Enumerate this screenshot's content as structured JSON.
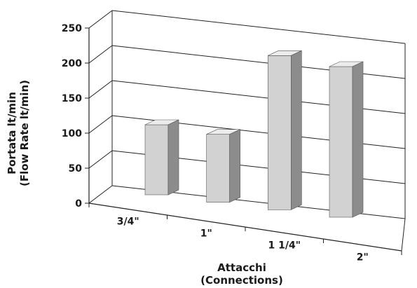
{
  "chart_data": {
    "type": "bar",
    "title": "",
    "categories": [
      "3/4\"",
      "1\"",
      "1 1/4\"",
      "2\""
    ],
    "values": [
      100,
      97,
      220,
      215
    ],
    "ylim": [
      0,
      250
    ],
    "yticks": [
      0,
      50,
      100,
      150,
      200,
      250
    ],
    "xlabel": [
      "Attacchi",
      "(Connections)"
    ],
    "ylabel": [
      "Portata lt/min",
      "(Flow Rate lt/min)"
    ],
    "grid": true,
    "style": "3d-perspective",
    "colors": {
      "bar_front": "#d2d2d2",
      "bar_top": "#ececec",
      "bar_side": "#8c8c8c",
      "grid": "#222222"
    }
  }
}
